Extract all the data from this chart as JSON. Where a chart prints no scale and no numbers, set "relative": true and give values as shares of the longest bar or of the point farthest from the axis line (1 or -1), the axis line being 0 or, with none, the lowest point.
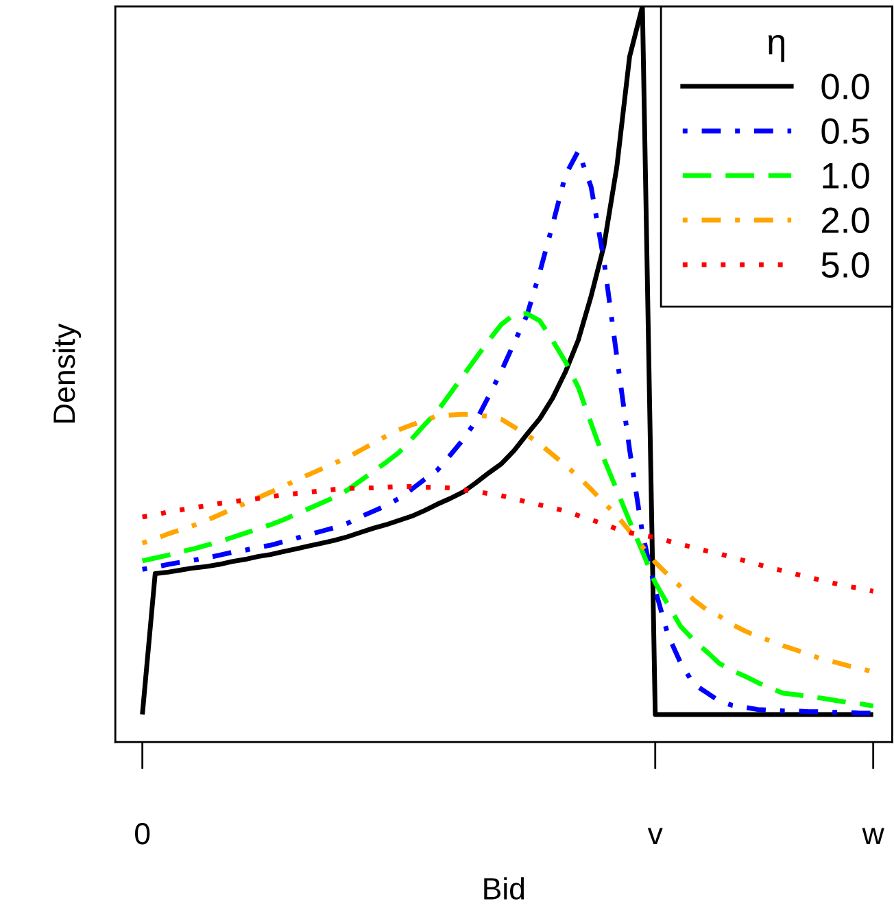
{
  "chart_data": {
    "type": "line",
    "relative": true,
    "xlabel": "Bid",
    "ylabel": "Density",
    "legend_title": "η",
    "legend": "top right",
    "grid": false,
    "categories": [
      "0",
      null,
      null,
      null,
      null,
      null,
      null,
      null,
      null,
      null,
      null,
      null,
      null,
      null,
      null,
      null,
      null,
      null,
      null,
      null,
      null,
      null,
      null,
      null,
      null,
      null,
      null,
      null,
      null,
      null,
      null,
      null,
      null,
      null,
      null,
      null,
      null,
      null,
      null,
      null,
      "v",
      null,
      null,
      null,
      null,
      null,
      null,
      null,
      null,
      null,
      null,
      null,
      null,
      null,
      null,
      null,
      null,
      "w"
    ],
    "series": [
      {
        "name": "0.0",
        "color": "#000000",
        "line_style": "solid",
        "values": [
          0,
          0.199,
          0.201,
          0.204,
          0.207,
          0.209,
          0.212,
          0.216,
          0.219,
          0.223,
          0.226,
          0.23,
          0.234,
          0.238,
          0.242,
          0.246,
          0.251,
          0.257,
          0.263,
          0.268,
          0.274,
          0.28,
          0.288,
          0.297,
          0.305,
          0.314,
          0.327,
          0.341,
          0.354,
          0.373,
          0.396,
          0.418,
          0.447,
          0.484,
          0.529,
          0.591,
          0.662,
          0.773,
          0.929,
          1,
          0,
          0,
          0,
          0,
          0,
          0,
          0,
          0,
          0,
          0,
          0,
          0,
          0,
          0,
          0,
          0,
          0,
          0
        ]
      },
      {
        "name": "0.5",
        "color": "#0000ff",
        "line_style": "dashdot",
        "values": [
          0.205,
          0.208,
          0.212,
          0.215,
          0.218,
          0.221,
          0.225,
          0.229,
          0.232,
          0.236,
          0.239,
          0.244,
          0.249,
          0.254,
          0.259,
          0.264,
          0.27,
          0.279,
          0.287,
          0.295,
          0.305,
          0.318,
          0.332,
          0.345,
          0.366,
          0.388,
          0.414,
          0.449,
          0.485,
          0.525,
          0.564,
          0.625,
          0.692,
          0.762,
          0.796,
          0.745,
          0.641,
          0.506,
          0.374,
          0.256,
          0.176,
          0.112,
          0.072,
          0.043,
          0.031,
          0.019,
          0.013,
          0.01,
          0.007,
          0.006,
          0.005,
          0.005,
          0.004,
          0.004,
          0.003,
          0.003,
          0.002,
          0.002
        ]
      },
      {
        "name": "1.0",
        "color": "#00ff00",
        "line_style": "dashed",
        "values": [
          0.217,
          0.221,
          0.225,
          0.23,
          0.234,
          0.239,
          0.244,
          0.25,
          0.256,
          0.262,
          0.268,
          0.275,
          0.283,
          0.291,
          0.299,
          0.307,
          0.317,
          0.33,
          0.343,
          0.356,
          0.37,
          0.389,
          0.409,
          0.428,
          0.453,
          0.478,
          0.503,
          0.528,
          0.551,
          0.565,
          0.566,
          0.556,
          0.528,
          0.498,
          0.462,
          0.411,
          0.361,
          0.317,
          0.273,
          0.23,
          0.186,
          0.155,
          0.124,
          0.105,
          0.089,
          0.072,
          0.062,
          0.054,
          0.045,
          0.037,
          0.03,
          0.028,
          0.025,
          0.023,
          0.02,
          0.017,
          0.015,
          0.012
        ]
      },
      {
        "name": "2.0",
        "color": "#ffa500",
        "line_style": "twodash",
        "values": [
          0.242,
          0.248,
          0.255,
          0.261,
          0.267,
          0.274,
          0.282,
          0.29,
          0.298,
          0.306,
          0.314,
          0.322,
          0.331,
          0.339,
          0.347,
          0.355,
          0.363,
          0.373,
          0.383,
          0.393,
          0.402,
          0.409,
          0.415,
          0.422,
          0.423,
          0.424,
          0.423,
          0.421,
          0.417,
          0.406,
          0.395,
          0.382,
          0.367,
          0.352,
          0.336,
          0.318,
          0.299,
          0.281,
          0.259,
          0.237,
          0.215,
          0.197,
          0.18,
          0.162,
          0.148,
          0.139,
          0.127,
          0.118,
          0.11,
          0.104,
          0.097,
          0.091,
          0.085,
          0.078,
          0.074,
          0.069,
          0.065,
          0.06
        ]
      },
      {
        "name": "5.0",
        "color": "#ff0000",
        "line_style": "dotted",
        "values": [
          0.279,
          0.282,
          0.286,
          0.289,
          0.292,
          0.295,
          0.298,
          0.3,
          0.303,
          0.305,
          0.308,
          0.31,
          0.312,
          0.314,
          0.316,
          0.318,
          0.319,
          0.32,
          0.32,
          0.321,
          0.322,
          0.322,
          0.321,
          0.321,
          0.32,
          0.317,
          0.315,
          0.312,
          0.309,
          0.305,
          0.3,
          0.296,
          0.292,
          0.287,
          0.281,
          0.275,
          0.269,
          0.262,
          0.257,
          0.253,
          0.25,
          0.245,
          0.24,
          0.236,
          0.231,
          0.227,
          0.222,
          0.217,
          0.212,
          0.207,
          0.203,
          0.198,
          0.194,
          0.189,
          0.185,
          0.181,
          0.178,
          0.174
        ]
      }
    ]
  }
}
